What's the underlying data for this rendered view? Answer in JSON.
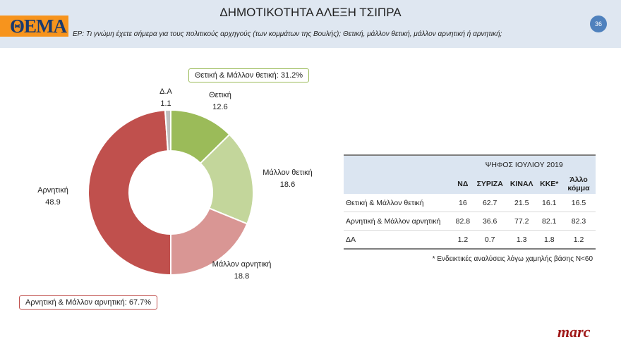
{
  "header": {
    "logo": "ΘΕΜΑ",
    "title": "ΔΗΜΟΤΙΚΟΤΗΤΑ ΑΛΕΞΗ ΤΣΙΠΡΑ",
    "question": "ΕΡ: Τι γνώμη έχετε σήμερα για τους πολιτικούς αρχηγούς (των κομμάτων της Βουλής); Θετική, μάλλον θετική, μάλλον αρνητική ή αρνητική;",
    "page": "36"
  },
  "chart_data": {
    "type": "pie",
    "donut": true,
    "slices": [
      {
        "label": "Θετική",
        "value": 12.6,
        "color": "#9bbb59"
      },
      {
        "label": "Μάλλον θετική",
        "value": 18.6,
        "color": "#c3d69b"
      },
      {
        "label": "Μάλλον αρνητική",
        "value": 18.8,
        "color": "#d99694"
      },
      {
        "label": "Αρνητική",
        "value": 48.9,
        "color": "#c0504d"
      },
      {
        "label": "Δ.Α",
        "value": 1.1,
        "color": "#bfbfbf"
      }
    ],
    "annotations": {
      "positive": "Θετική & Μάλλον θετική: 31.2%",
      "negative": "Αρνητική & Μάλλον αρνητική: 67.7%"
    }
  },
  "table": {
    "group_header": "ΨΗΦΟΣ ΙΟΥΛΙΟΥ 2019",
    "columns": [
      "ΝΔ",
      "ΣΥΡΙΖΑ",
      "ΚΙΝΑΛ",
      "ΚΚΕ*",
      "Άλλο κόμμα"
    ],
    "rows": [
      {
        "label": "Θετική & Μάλλον θετική",
        "values": [
          "16",
          "62.7",
          "21.5",
          "16.1",
          "16.5"
        ]
      },
      {
        "label": "Αρνητική & Μάλλον αρνητική",
        "values": [
          "82.8",
          "36.6",
          "77.2",
          "82.1",
          "82.3"
        ]
      },
      {
        "label": "ΔΑ",
        "values": [
          "1.2",
          "0.7",
          "1.3",
          "1.8",
          "1.2"
        ]
      }
    ],
    "note": "* Ενδεικτικές αναλύσεις λόγω χαμηλής βάσης Ν<60"
  },
  "footer": {
    "brand": "marc"
  }
}
